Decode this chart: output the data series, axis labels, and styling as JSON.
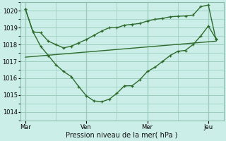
{
  "title": "",
  "xlabel": "Pression niveau de la mer( hPa )",
  "ylim": [
    1013.5,
    1020.5
  ],
  "yticks": [
    1014,
    1015,
    1016,
    1017,
    1018,
    1019,
    1020
  ],
  "background_color": "#cceee8",
  "grid_color": "#99ccbb",
  "line_color": "#2d6b2d",
  "xtick_labels": [
    "Mar",
    "Ven",
    "Mer",
    "Jeu"
  ],
  "xtick_positions": [
    0,
    24,
    48,
    72
  ],
  "vline_positions": [
    0,
    24,
    48,
    72
  ],
  "series1_x": [
    0,
    3,
    6,
    9,
    12,
    15,
    18,
    21,
    24,
    27,
    30,
    33,
    36,
    39,
    42,
    45,
    48,
    51,
    54,
    57,
    60,
    63,
    66,
    69,
    72,
    75
  ],
  "series1_y": [
    1020.1,
    1018.75,
    1018.7,
    1018.2,
    1018.0,
    1017.8,
    1017.9,
    1018.1,
    1018.3,
    1018.55,
    1018.8,
    1019.0,
    1019.0,
    1019.15,
    1019.2,
    1019.25,
    1019.4,
    1019.5,
    1019.55,
    1019.65,
    1019.68,
    1019.7,
    1019.75,
    1020.25,
    1020.35,
    1018.3
  ],
  "series2_x": [
    0,
    3,
    6,
    9,
    12,
    15,
    18,
    21,
    24,
    27,
    30,
    33,
    36,
    39,
    42,
    45,
    48,
    51,
    54,
    57,
    60,
    63,
    66,
    69,
    72,
    75
  ],
  "series2_y": [
    1020.1,
    1018.75,
    1017.9,
    1017.35,
    1016.8,
    1016.4,
    1016.1,
    1015.5,
    1014.95,
    1014.65,
    1014.6,
    1014.75,
    1015.1,
    1015.55,
    1015.55,
    1015.9,
    1016.4,
    1016.65,
    1017.0,
    1017.35,
    1017.6,
    1017.65,
    1018.0,
    1018.5,
    1019.1,
    1018.35
  ],
  "series3_x": [
    0,
    75
  ],
  "series3_y": [
    1017.25,
    1018.2
  ],
  "xlim": [
    -2,
    78
  ]
}
